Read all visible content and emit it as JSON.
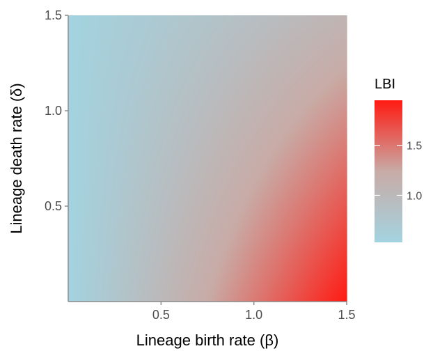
{
  "chart_data": {
    "type": "heatmap",
    "title": "",
    "xlabel": "Lineage birth rate (β)",
    "ylabel": "Lineage death rate (δ)",
    "xlim": [
      0,
      1.5
    ],
    "ylim": [
      0,
      1.5
    ],
    "x_ticks": [
      0.5,
      1.0,
      1.5
    ],
    "x_tick_labels": [
      "0.5",
      "1.0",
      "1.5"
    ],
    "y_ticks": [
      0.5,
      1.0,
      1.5
    ],
    "y_tick_labels": [
      "0.5",
      "1.0",
      "1.5"
    ],
    "grid": false,
    "legend": {
      "title": "LBI",
      "placement": "right",
      "breaks": [
        1.0,
        1.5
      ],
      "break_labels": [
        "1.0",
        "1.5"
      ],
      "range": [
        0.53,
        1.95
      ],
      "low_color": "#a3d3e0",
      "mid_color": "#c8aba6",
      "high_color": "#ff1a12"
    },
    "corner_values": {
      "x0_y0": 0.53,
      "x0_y1.5": 0.53,
      "x1.5_y1.5": 1.08,
      "x1.5_y0": 1.95
    },
    "colors": {
      "axis_line": "#8c8c8c",
      "tick_text": "#4d4d4d",
      "title_text": "#000000"
    }
  }
}
